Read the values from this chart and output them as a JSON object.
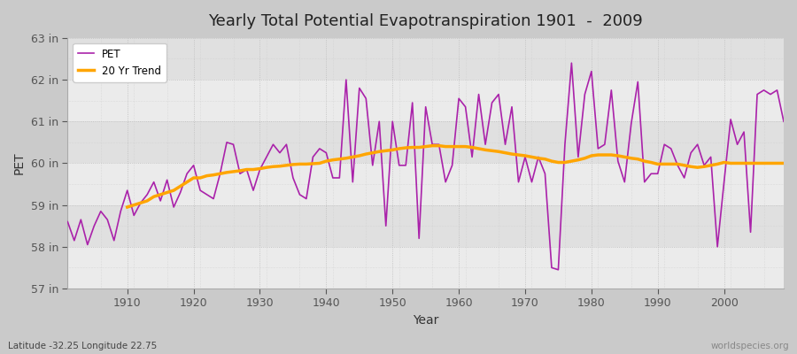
{
  "title": "Yearly Total Potential Evapotranspiration 1901  -  2009",
  "xlabel": "Year",
  "ylabel": "PET",
  "subtitle": "Latitude -32.25 Longitude 22.75",
  "watermark": "worldspecies.org",
  "pet_color": "#AA22AA",
  "trend_color": "#FFA500",
  "fig_bg_color": "#DDDDDD",
  "plot_bg_color": "#E8E8E8",
  "band_color_light": "#EBEBEB",
  "band_color_dark": "#DEDEDE",
  "ylim": [
    57,
    63
  ],
  "ytick_labels": [
    "57 in",
    "58 in",
    "59 in",
    "60 in",
    "61 in",
    "62 in",
    "63 in"
  ],
  "ytick_values": [
    57,
    58,
    59,
    60,
    61,
    62,
    63
  ],
  "years": [
    1901,
    1902,
    1903,
    1904,
    1905,
    1906,
    1907,
    1908,
    1909,
    1910,
    1911,
    1912,
    1913,
    1914,
    1915,
    1916,
    1917,
    1918,
    1919,
    1920,
    1921,
    1922,
    1923,
    1924,
    1925,
    1926,
    1927,
    1928,
    1929,
    1930,
    1931,
    1932,
    1933,
    1934,
    1935,
    1936,
    1937,
    1938,
    1939,
    1940,
    1941,
    1942,
    1943,
    1944,
    1945,
    1946,
    1947,
    1948,
    1949,
    1950,
    1951,
    1952,
    1953,
    1954,
    1955,
    1956,
    1957,
    1958,
    1959,
    1960,
    1961,
    1962,
    1963,
    1964,
    1965,
    1966,
    1967,
    1968,
    1969,
    1970,
    1971,
    1972,
    1973,
    1974,
    1975,
    1976,
    1977,
    1978,
    1979,
    1980,
    1981,
    1982,
    1983,
    1984,
    1985,
    1986,
    1987,
    1988,
    1989,
    1990,
    1991,
    1992,
    1993,
    1994,
    1995,
    1996,
    1997,
    1998,
    1999,
    2000,
    2001,
    2002,
    2003,
    2004,
    2005,
    2006,
    2007,
    2008,
    2009
  ],
  "pet_values": [
    58.6,
    58.15,
    58.65,
    58.05,
    58.5,
    58.85,
    58.65,
    58.15,
    58.85,
    59.35,
    58.75,
    59.05,
    59.25,
    59.55,
    59.1,
    59.6,
    58.95,
    59.3,
    59.75,
    59.95,
    59.35,
    59.25,
    59.15,
    59.75,
    60.5,
    60.45,
    59.75,
    59.85,
    59.35,
    59.85,
    60.15,
    60.45,
    60.25,
    60.45,
    59.65,
    59.25,
    59.15,
    60.15,
    60.35,
    60.25,
    59.65,
    59.65,
    62.0,
    59.55,
    61.8,
    61.55,
    59.95,
    61.0,
    58.5,
    61.0,
    59.95,
    59.95,
    61.45,
    58.2,
    61.35,
    60.45,
    60.45,
    59.55,
    59.95,
    61.55,
    61.35,
    60.15,
    61.65,
    60.45,
    61.45,
    61.65,
    60.45,
    61.35,
    59.55,
    60.15,
    59.55,
    60.15,
    59.75,
    57.5,
    57.45,
    60.45,
    62.4,
    60.15,
    61.65,
    62.2,
    60.35,
    60.45,
    61.75,
    60.05,
    59.55,
    60.95,
    61.95,
    59.55,
    59.75,
    59.75,
    60.45,
    60.35,
    59.95,
    59.65,
    60.25,
    60.45,
    59.95,
    60.15,
    58.0,
    59.55,
    61.05,
    60.45,
    60.75,
    58.35,
    61.65,
    61.75,
    61.65,
    61.75,
    61.0
  ],
  "trend_values": [
    null,
    null,
    null,
    null,
    null,
    null,
    null,
    null,
    null,
    58.95,
    59.0,
    59.05,
    59.1,
    59.2,
    59.25,
    59.3,
    59.35,
    59.45,
    59.55,
    59.65,
    59.65,
    59.7,
    59.72,
    59.75,
    59.78,
    59.8,
    59.82,
    59.85,
    59.85,
    59.87,
    59.9,
    59.92,
    59.93,
    59.95,
    59.97,
    59.98,
    59.98,
    59.99,
    60.0,
    60.05,
    60.08,
    60.1,
    60.12,
    60.15,
    60.18,
    60.22,
    60.25,
    60.28,
    60.3,
    60.32,
    60.35,
    60.37,
    60.38,
    60.38,
    60.4,
    60.42,
    60.42,
    60.4,
    60.4,
    60.4,
    60.4,
    60.38,
    60.35,
    60.32,
    60.3,
    60.28,
    60.25,
    60.22,
    60.2,
    60.18,
    60.15,
    60.12,
    60.1,
    60.05,
    60.02,
    60.02,
    60.05,
    60.08,
    60.12,
    60.18,
    60.2,
    60.2,
    60.2,
    60.18,
    60.15,
    60.12,
    60.1,
    60.05,
    60.02,
    59.98,
    59.98,
    59.98,
    59.98,
    59.95,
    59.92,
    59.9,
    59.92,
    59.95,
    59.98,
    60.02,
    60.0,
    60.0,
    60.0,
    60.0,
    60.0,
    60.0,
    60.0,
    60.0,
    60.0
  ]
}
